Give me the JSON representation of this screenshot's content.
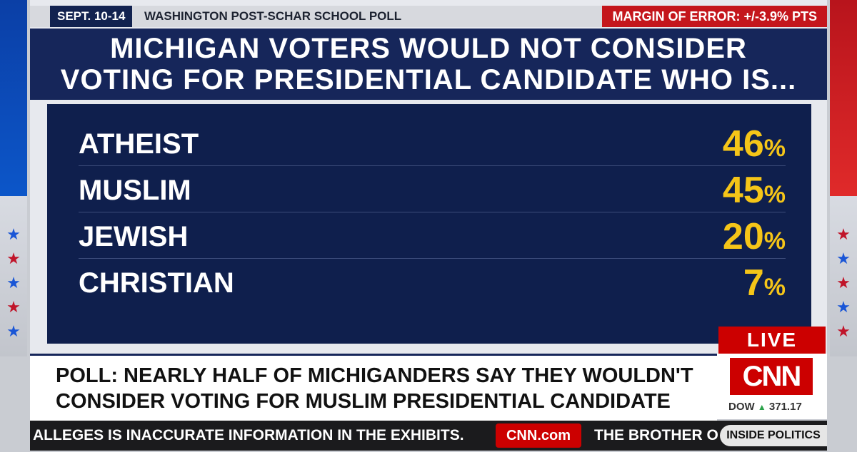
{
  "header": {
    "dates": "SEPT. 10-14",
    "source": "WASHINGTON POST-SCHAR SCHOOL POLL",
    "margin": "MARGIN OF ERROR: +/-3.9% PTS"
  },
  "title": {
    "line1": "MICHIGAN VOTERS WOULD NOT CONSIDER",
    "line2": "VOTING FOR PRESIDENTIAL CANDIDATE WHO IS..."
  },
  "rows": [
    {
      "label": "ATHEIST",
      "value": "46",
      "unit": "%"
    },
    {
      "label": "MUSLIM",
      "value": "45",
      "unit": "%"
    },
    {
      "label": "JEWISH",
      "value": "20",
      "unit": "%"
    },
    {
      "label": "CHRISTIAN",
      "value": "7",
      "unit": "%"
    }
  ],
  "live": "LIVE",
  "lower_third": {
    "line1": "POLL: NEARLY HALF OF MICHIGANDERS SAY THEY WOULDN'T",
    "line2": "CONSIDER VOTING FOR MUSLIM  PRESIDENTIAL CANDIDATE"
  },
  "logo": "CNN",
  "dow": {
    "label": "DOW",
    "value": "371.17",
    "direction_icon": "up-triangle-icon"
  },
  "ticker": {
    "text1": "ALLEGES IS INACCURATE INFORMATION IN THE EXHIBITS.",
    "site": "CNN.com",
    "text2": "THE BROTHER O",
    "show": "INSIDE POLITICS"
  },
  "colors": {
    "navy": "#16265a",
    "panel": "#0f1f4d",
    "accent_yellow": "#f5c518",
    "cnn_red": "#cc0000"
  }
}
